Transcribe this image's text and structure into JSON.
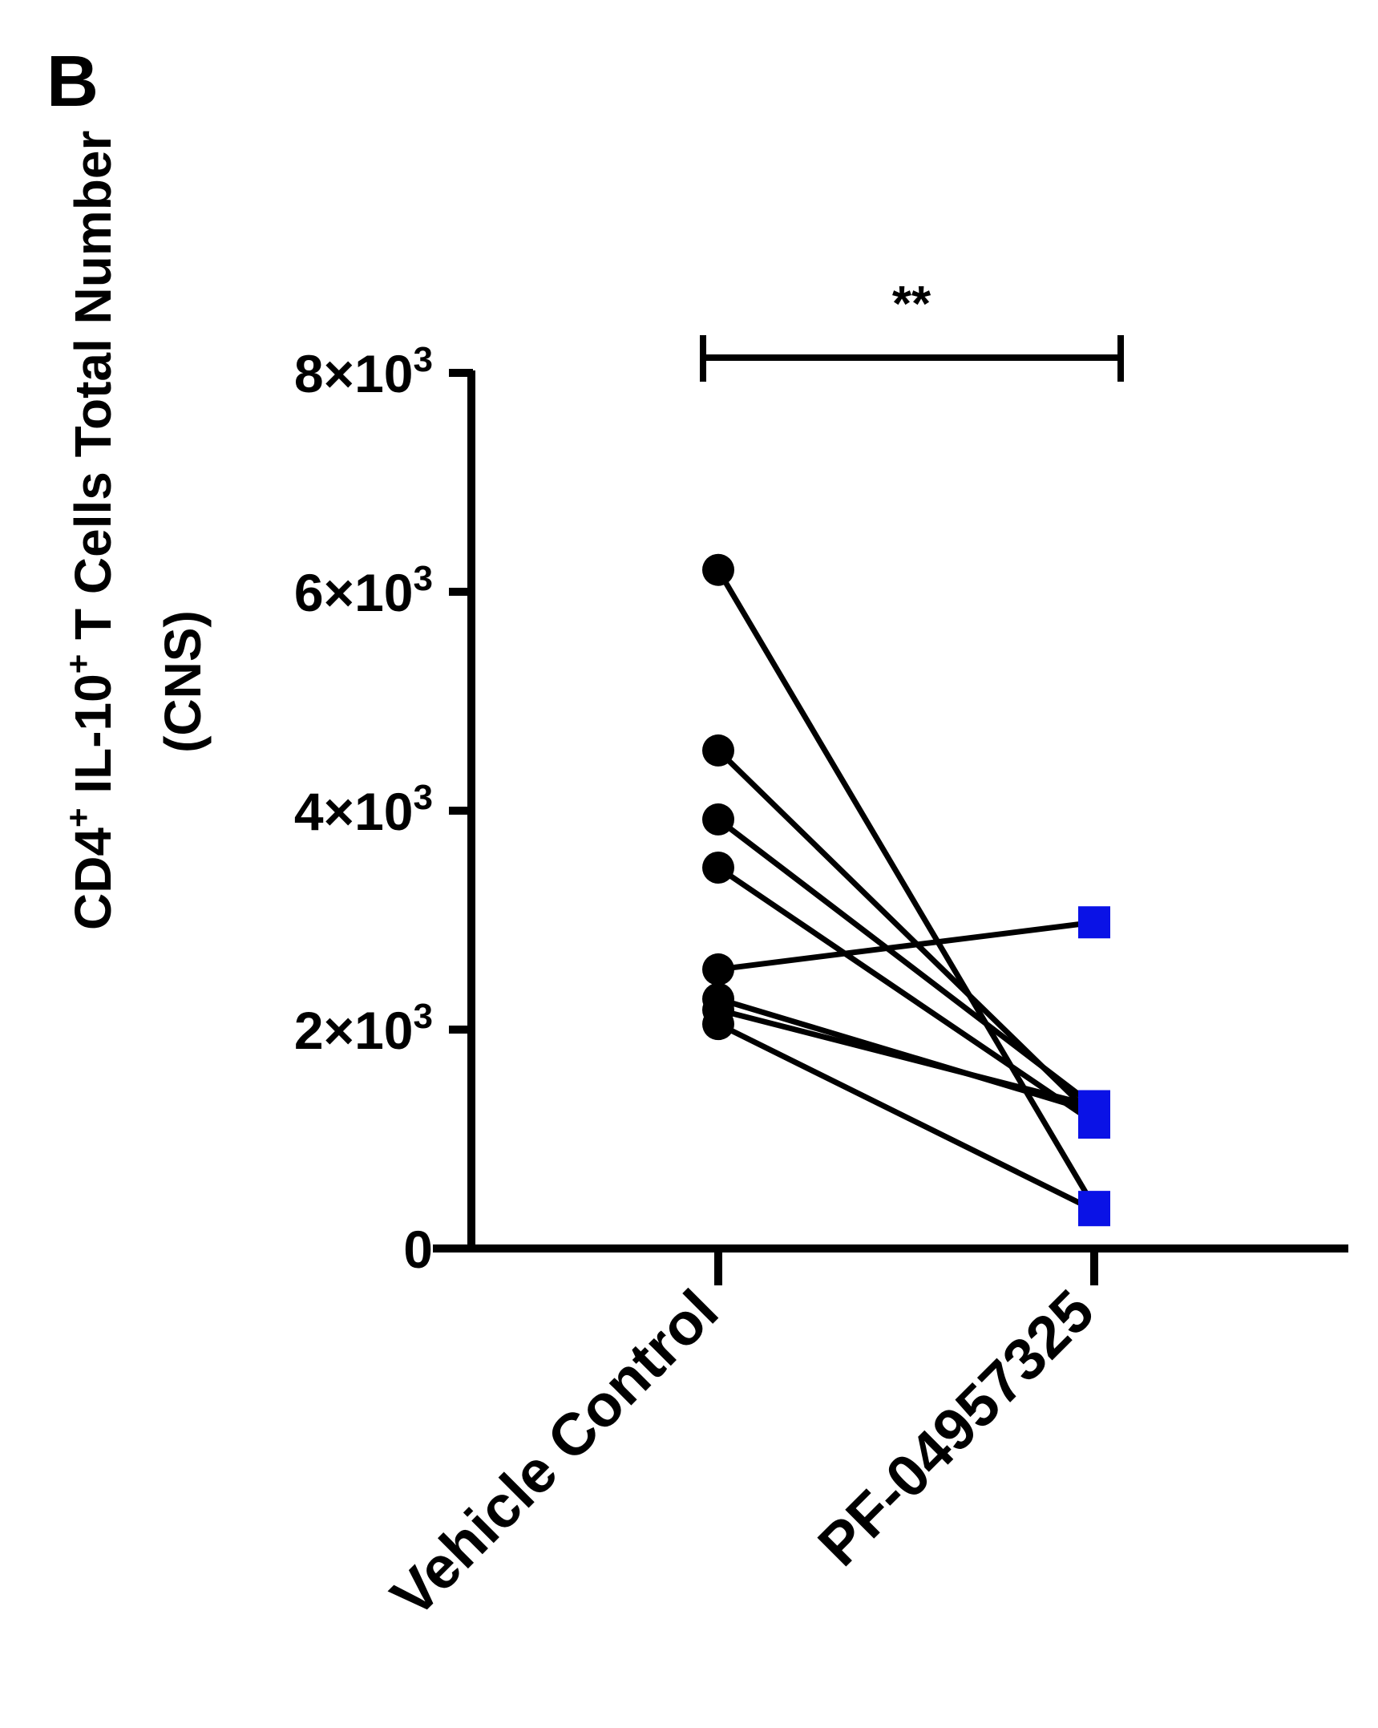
{
  "panel_label": "B",
  "chart_data": {
    "type": "scatter",
    "style": "paired before-after plot",
    "ylabel_prefix": "CD4",
    "ylabel_sup1": "+",
    "ylabel_mid": " IL-10",
    "ylabel_sup2": "+",
    "ylabel_suffix": " T Cells Total Number",
    "ylabel_line2": "(CNS)",
    "ylim": [
      0,
      8000
    ],
    "yticks": [
      {
        "value": 0,
        "mantissa": "0",
        "exponent": ""
      },
      {
        "value": 2000,
        "mantissa": "2×10",
        "exponent": "3"
      },
      {
        "value": 4000,
        "mantissa": "4×10",
        "exponent": "3"
      },
      {
        "value": 6000,
        "mantissa": "6×10",
        "exponent": "3"
      },
      {
        "value": 8000,
        "mantissa": "8×10",
        "exponent": "3"
      }
    ],
    "categories": [
      "Vehicle Control",
      "PF-04957325"
    ],
    "series": [
      {
        "marker": "circle",
        "color": "#000000",
        "values": [
          6200,
          4550,
          3920,
          3480,
          2550,
          2280,
          2180,
          2050
        ]
      },
      {
        "marker": "square",
        "color": "#0a12e6",
        "values": [
          380,
          1200,
          1300,
          1150,
          2980,
          1250,
          1300,
          350
        ]
      }
    ],
    "significance": {
      "text": "**",
      "between": [
        "Vehicle Control",
        "PF-04957325"
      ]
    },
    "grid": false
  }
}
